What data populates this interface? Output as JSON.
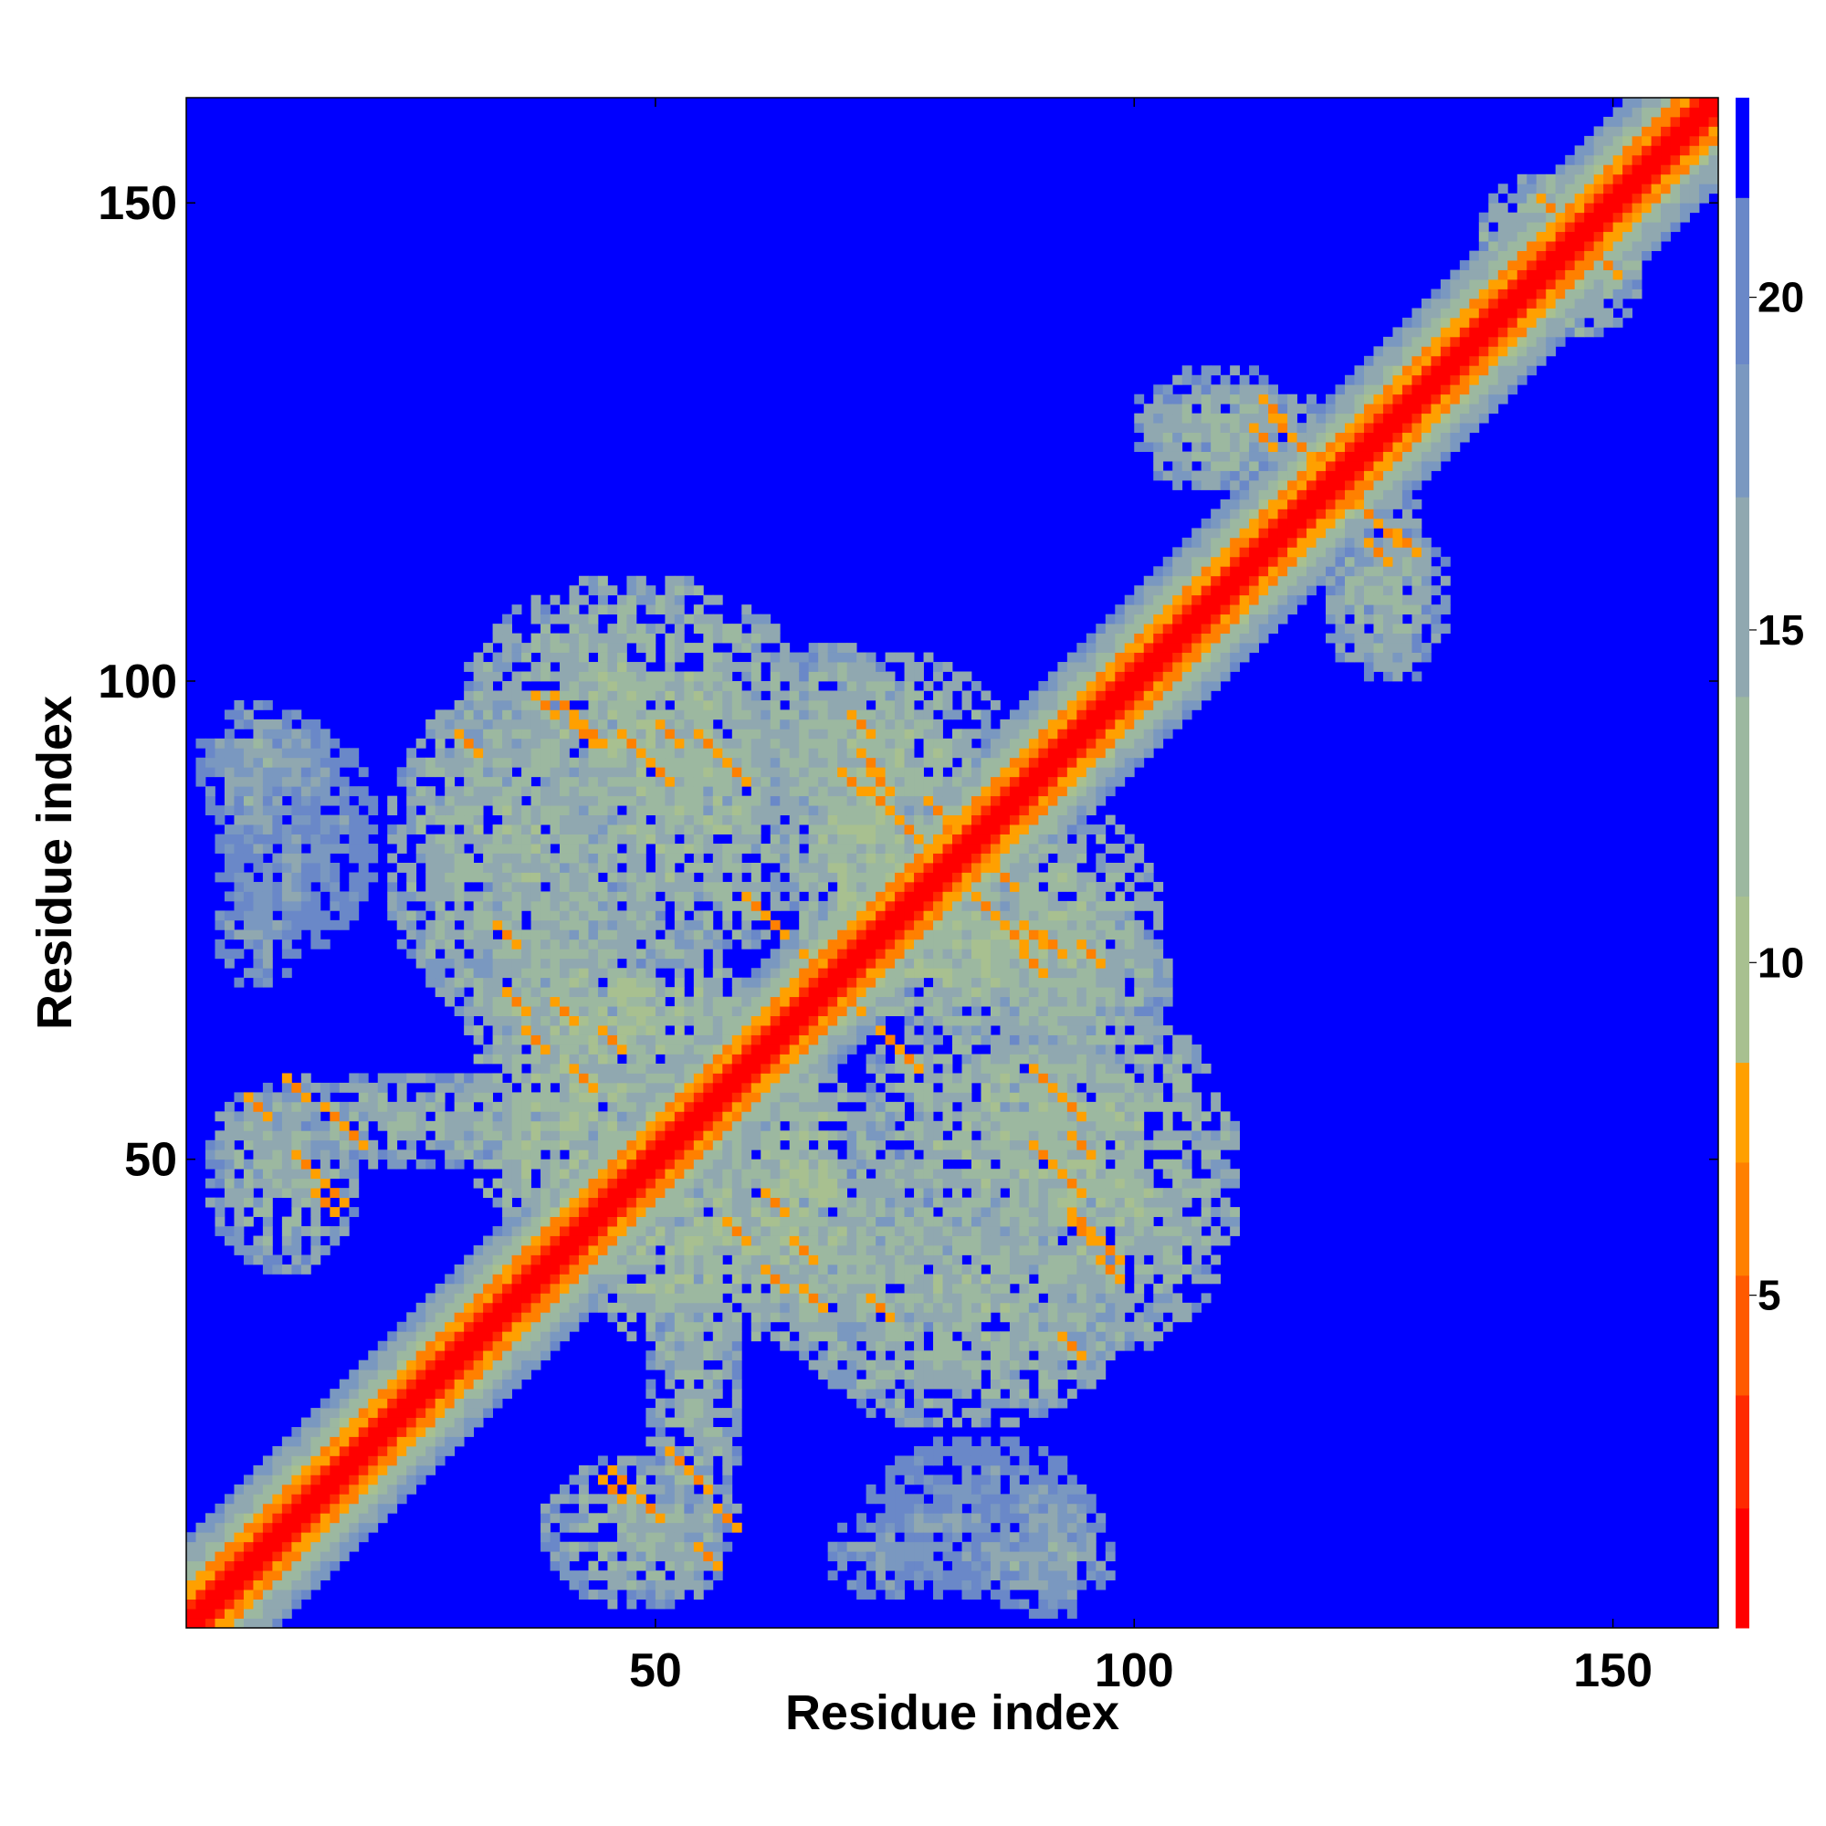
{
  "chart_data": {
    "type": "heatmap",
    "title": "",
    "xlabel": "Residue index",
    "ylabel": "Residue index",
    "xlim": [
      1,
      161
    ],
    "ylim": [
      1,
      161
    ],
    "x_ticks": [
      50,
      100,
      150
    ],
    "y_ticks": [
      50,
      100,
      150
    ],
    "n_residues": 160,
    "colorbar": {
      "ticks": [
        5,
        10,
        15,
        20
      ],
      "range": [
        0,
        23
      ],
      "levels": [
        {
          "from": 0,
          "to": 1.8,
          "color": "#ff0000"
        },
        {
          "from": 1.8,
          "to": 3.5,
          "color": "#ff2a00"
        },
        {
          "from": 3.5,
          "to": 5.3,
          "color": "#ff5a00"
        },
        {
          "from": 5.3,
          "to": 7.0,
          "color": "#ff8000"
        },
        {
          "from": 7.0,
          "to": 8.5,
          "color": "#ffa000"
        },
        {
          "from": 8.5,
          "to": 11.0,
          "color": "#a8c090"
        },
        {
          "from": 11.0,
          "to": 14.0,
          "color": "#9cb8a0"
        },
        {
          "from": 14.0,
          "to": 17.0,
          "color": "#90a8b0"
        },
        {
          "from": 17.0,
          "to": 19.0,
          "color": "#7a98c0"
        },
        {
          "from": 19.0,
          "to": 21.5,
          "color": "#6a88c8"
        },
        {
          "from": 21.5,
          "to": 23.0,
          "color": "#0000ff"
        }
      ]
    },
    "background_value": 23,
    "background_color": "#0000ff",
    "contact_regions": [
      {
        "x": [
          1,
          160
        ],
        "y": [
          1,
          160
        ],
        "value": 1,
        "note": "diagonal band width 3 residues, surrounded by 9-value halo"
      },
      {
        "x": [
          3,
          18
        ],
        "y": [
          38,
          58
        ],
        "value": 14,
        "hotspots": [
          [
            8,
            55
          ],
          [
            16,
            54
          ],
          [
            13,
            49
          ],
          [
            15,
            45
          ]
        ]
      },
      {
        "x": [
          2,
          15
        ],
        "y": [
          83,
          97
        ],
        "value": 16
      },
      {
        "x": [
          4,
          12
        ],
        "y": [
          68,
          78
        ],
        "value": 17
      },
      {
        "x": [
          22,
          46
        ],
        "y": [
          64,
          98
        ],
        "value": 13,
        "hotspots": [
          [
            34,
            73
          ],
          [
            40,
            65
          ],
          [
            45,
            62
          ],
          [
            38,
            97
          ],
          [
            43,
            94
          ],
          [
            47,
            93
          ]
        ]
      },
      {
        "x": [
          30,
          60
        ],
        "y": [
          58,
          72
        ],
        "value": 12
      },
      {
        "x": [
          40,
          65
        ],
        "y": [
          70,
          100
        ],
        "value": 13,
        "hotspots": [
          [
            51,
            94
          ],
          [
            55,
            93
          ],
          [
            58,
            90
          ]
        ]
      },
      {
        "x": [
          60,
          75
        ],
        "y": [
          85,
          103
        ],
        "value": 14,
        "hotspots": [
          [
            70,
            89
          ],
          [
            73,
            87
          ],
          [
            76,
            84
          ]
        ]
      },
      {
        "x": [
          49,
          58
        ],
        "y": [
          10,
          40
        ],
        "value": 14,
        "hotspots": [
          [
            52,
            18
          ],
          [
            46,
            16
          ],
          [
            57,
            12
          ]
        ]
      },
      {
        "x": [
          42,
          65
        ],
        "y": [
          30,
          52
        ],
        "value": 12,
        "hotspots": [
          [
            58,
            42
          ],
          [
            62,
            37
          ],
          [
            66,
            35
          ]
        ]
      },
      {
        "x": [
          65,
          80
        ],
        "y": [
          28,
          50
        ],
        "value": 14
      },
      {
        "x": [
          72,
          95
        ],
        "y": [
          4,
          20
        ],
        "value": 18
      },
      {
        "x": [
          83,
          110
        ],
        "y": [
          30,
          65
        ],
        "value": 13,
        "hotspots": [
          [
            90,
            50
          ],
          [
            94,
            42
          ],
          [
            97,
            40
          ],
          [
            93,
            30
          ]
        ]
      },
      {
        "x": [
          82,
          102
        ],
        "y": [
          62,
          86
        ],
        "value": 13,
        "hotspots": [
          [
            86,
            79
          ],
          [
            89,
            73
          ],
          [
            91,
            72
          ],
          [
            95,
            71
          ]
        ]
      },
      {
        "x": [
          68,
          96
        ],
        "y": [
          64,
          78
        ],
        "value": 12,
        "hotspots": [
          [
            70,
            66
          ],
          [
            74,
            62
          ],
          [
            76,
            60
          ]
        ]
      },
      {
        "x": [
          100,
          116
        ],
        "y": [
          120,
          130
        ],
        "value": 14,
        "hotspots": [
          [
            113,
            125
          ],
          [
            117,
            124
          ]
        ]
      },
      {
        "x": [
          123,
          132
        ],
        "y": [
          100,
          118
        ],
        "value": 15,
        "hotspots": [
          [
            126,
            115
          ],
          [
            128,
            114
          ]
        ]
      },
      {
        "x": [
          136,
          150
        ],
        "y": [
          140,
          152
        ],
        "value": 13,
        "hotspots": [
          [
            143,
            149
          ],
          [
            146,
            144
          ]
        ]
      }
    ]
  }
}
